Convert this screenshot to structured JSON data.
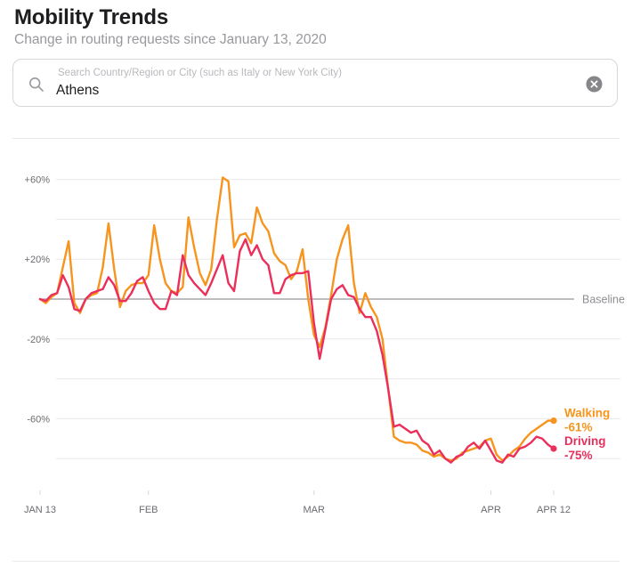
{
  "header": {
    "title": "Mobility Trends",
    "subtitle": "Change in routing requests since January 13, 2020"
  },
  "search": {
    "placeholder": "Search Country/Region or City (such as Italy or New York City)",
    "value": "Athens",
    "icons": {
      "left": "magnifier-search",
      "right": "clear-circle-x"
    }
  },
  "chart_data": {
    "type": "line",
    "title": "Mobility Trends — Athens",
    "xlabel": "",
    "ylabel": "Change in routing requests (%)",
    "ylim": [
      -95,
      75
    ],
    "grid": true,
    "baseline_label": "Baseline",
    "baseline_value": 0,
    "y_gridlines": [
      60,
      40,
      20,
      -20,
      -40,
      -60,
      -80
    ],
    "y_ticks": [
      {
        "label": "+60%",
        "value": 60
      },
      {
        "label": "+20%",
        "value": 20
      },
      {
        "label": "-20%",
        "value": -20
      },
      {
        "label": "-60%",
        "value": -60
      }
    ],
    "x_ticks": [
      {
        "label": "JAN 13",
        "day": 0
      },
      {
        "label": "FEB",
        "day": 19
      },
      {
        "label": "MAR",
        "day": 48
      },
      {
        "label": "APR",
        "day": 79
      },
      {
        "label": "APR 12",
        "day": 90
      }
    ],
    "x_unit": "days since Jan 13, 2020",
    "series": [
      {
        "name": "Walking",
        "color": "#F7941E",
        "end_label": "-61%",
        "end_value": -61,
        "values": [
          0,
          -2,
          1,
          3,
          16,
          29,
          -2,
          -7,
          0,
          2,
          3,
          16,
          38,
          15,
          -4,
          4,
          7,
          8,
          8,
          12,
          37,
          20,
          8,
          4,
          3,
          6,
          41,
          26,
          13,
          7,
          15,
          40,
          61,
          59,
          26,
          32,
          33,
          28,
          46,
          38,
          34,
          23,
          19,
          17,
          10,
          14,
          25,
          0,
          -18,
          -24,
          -14,
          2,
          20,
          30,
          37,
          8,
          -7,
          3,
          -4,
          -9,
          -20,
          -45,
          -69,
          -71,
          -72,
          -72,
          -73,
          -76,
          -77,
          -79,
          -78,
          -80,
          -81,
          -80,
          -77,
          -76,
          -75,
          -74,
          -71,
          -70,
          -78,
          -81,
          -79,
          -76,
          -74,
          -70,
          -67,
          -65,
          -63,
          -61,
          -61
        ]
      },
      {
        "name": "Driving",
        "color": "#EB2F5B",
        "end_label": "-75%",
        "end_value": -75,
        "values": [
          0,
          -1,
          2,
          3,
          12,
          6,
          -5,
          -6,
          0,
          3,
          4,
          5,
          11,
          7,
          -1,
          -1,
          3,
          9,
          11,
          4,
          -2,
          -5,
          -5,
          4,
          2,
          22,
          12,
          8,
          5,
          2,
          8,
          15,
          22,
          8,
          4,
          24,
          30,
          22,
          27,
          20,
          17,
          3,
          3,
          10,
          12,
          13,
          13,
          14,
          -12,
          -30,
          -15,
          0,
          5,
          7,
          2,
          1,
          -5,
          -9,
          -9,
          -16,
          -28,
          -45,
          -64,
          -63,
          -65,
          -67,
          -66,
          -71,
          -73,
          -78,
          -76,
          -80,
          -82,
          -79,
          -78,
          -74,
          -72,
          -75,
          -71,
          -76,
          -81,
          -82,
          -78,
          -79,
          -75,
          -74,
          -72,
          -69,
          -70,
          -73,
          -75
        ]
      }
    ],
    "colors": {
      "grid": "#e8e8ed",
      "baseline": "#98989d",
      "axis_text": "#6b6b70",
      "baseline_text": "#8e8e93"
    }
  }
}
